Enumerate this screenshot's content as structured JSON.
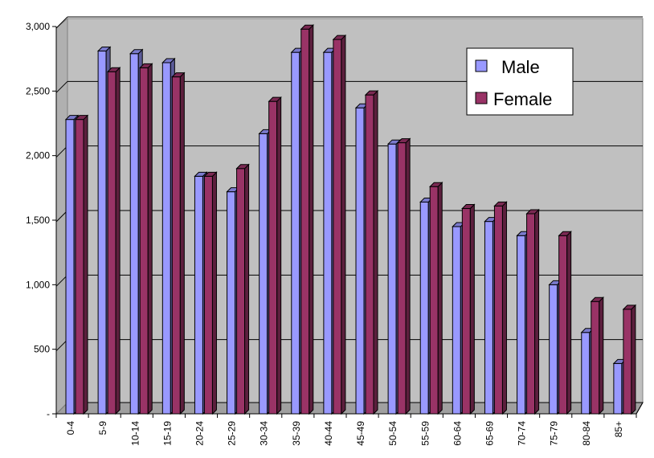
{
  "chart_data": {
    "type": "bar",
    "title": "",
    "xlabel": "",
    "ylabel": "",
    "ylim": [
      0,
      3000
    ],
    "yticks": [
      0,
      500,
      1000,
      1500,
      2000,
      2500,
      3000
    ],
    "ytick_labels": [
      "-",
      "500",
      "1,000",
      "1,500",
      "2,000",
      "2,500",
      "3,000"
    ],
    "grid": true,
    "legend_position": "top-right",
    "categories": [
      "0-4",
      "5-9",
      "10-14",
      "15-19",
      "20-24",
      "25-29",
      "30-34",
      "35-39",
      "40-44",
      "45-49",
      "50-54",
      "55-59",
      "60-64",
      "65-69",
      "70-74",
      "75-79",
      "80-84",
      "85+"
    ],
    "series": [
      {
        "name": "Male",
        "color": "#9999ff",
        "values": [
          2280,
          2810,
          2790,
          2720,
          1840,
          1720,
          2170,
          2800,
          2800,
          2370,
          2090,
          1640,
          1450,
          1490,
          1380,
          1000,
          630,
          390
        ]
      },
      {
        "name": "Female",
        "color": "#993366",
        "values": [
          2280,
          2650,
          2680,
          2610,
          1840,
          1900,
          2420,
          2980,
          2900,
          2470,
          2100,
          1760,
          1590,
          1610,
          1550,
          1380,
          870,
          810
        ]
      }
    ]
  }
}
